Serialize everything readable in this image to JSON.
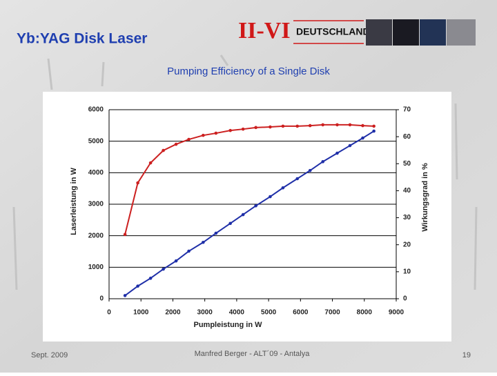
{
  "slide": {
    "title": "Yb:YAG Disk Laser",
    "logo": {
      "mark": "II-VI",
      "text": "DEUTSCHLAND"
    }
  },
  "footer": {
    "date": "Sept. 2009",
    "author": "Manfred Berger  - ALT´09 - Antalya",
    "page": "19"
  },
  "chart_data": {
    "type": "line",
    "title": "Pumping Efficiency of a Single Disk",
    "x_label": "Pumpleistung in W",
    "y_label": "Laserleistung in W",
    "y2_label": "Wirkungsgrad in %",
    "x": [
      500,
      900,
      1300,
      1700,
      2100,
      2500,
      2950,
      3350,
      3800,
      4200,
      4600,
      5050,
      5450,
      5900,
      6300,
      6700,
      7150,
      7550,
      7950,
      8300
    ],
    "series": [
      {
        "name": "Laserleistung",
        "color": "#1f2fa8",
        "axis": "y",
        "values": [
          100,
          400,
          650,
          940,
          1200,
          1510,
          1790,
          2080,
          2390,
          2670,
          2950,
          3240,
          3520,
          3810,
          4070,
          4350,
          4620,
          4860,
          5100,
          5320
        ]
      },
      {
        "name": "Wirkungsgrad",
        "color": "#cc2020",
        "axis": "y2",
        "values": [
          23.8,
          42.9,
          50.3,
          54.9,
          57.2,
          59.0,
          60.5,
          61.3,
          62.3,
          62.8,
          63.4,
          63.6,
          63.9,
          63.9,
          64.1,
          64.4,
          64.4,
          64.4,
          64.1,
          63.9
        ]
      }
    ],
    "xlim": [
      0,
      9000
    ],
    "xticks": [
      0,
      1000,
      2000,
      3000,
      4000,
      5000,
      6000,
      7000,
      8000,
      9000
    ],
    "ylim": [
      0,
      6000
    ],
    "yticks": [
      0,
      1000,
      2000,
      3000,
      4000,
      5000,
      6000
    ],
    "y2lim": [
      0,
      70
    ],
    "y2ticks": [
      0,
      10,
      20,
      30,
      40,
      50,
      60,
      70
    ],
    "grid": true
  }
}
